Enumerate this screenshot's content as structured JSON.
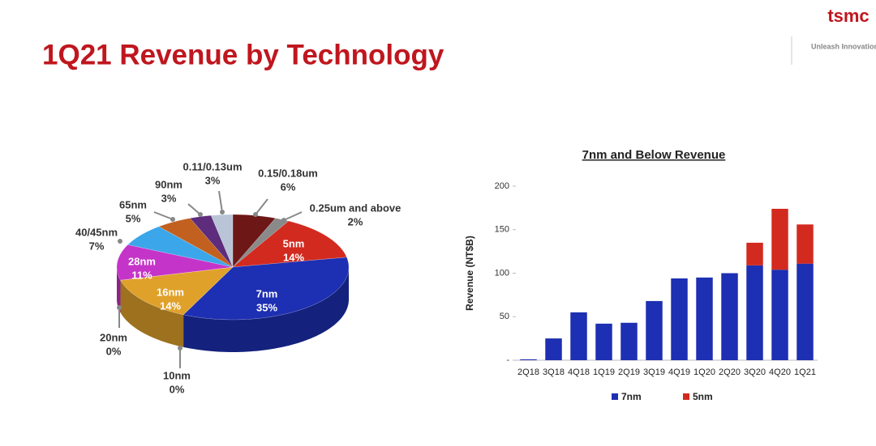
{
  "slide": {
    "title": "1Q21 Revenue by Technology",
    "logo": "tsmc",
    "tagline": "Unleash Innovation"
  },
  "chart_data": [
    {
      "type": "pie",
      "categories": [
        "0.15/0.18um",
        "0.25um and above",
        "5nm",
        "7nm",
        "10nm",
        "16nm",
        "20nm",
        "28nm",
        "40/45nm",
        "65nm",
        "90nm",
        "0.11/0.13um"
      ],
      "values": [
        6,
        2,
        14,
        35,
        0,
        14,
        0,
        11,
        7,
        5,
        3,
        3
      ],
      "value_labels": [
        "6%",
        "2%",
        "14%",
        "35%",
        "0%",
        "14%",
        "0%",
        "11%",
        "7%",
        "5%",
        "3%",
        "3%"
      ],
      "colors": [
        "#6e1717",
        "#8a8a8a",
        "#d22a1f",
        "#1d2fb2",
        "#555555",
        "#e0a12b",
        "#9a9a9a",
        "#c534c8",
        "#3ca6ea",
        "#c2611f",
        "#5d2c7c",
        "#b9c5d6"
      ]
    },
    {
      "type": "bar",
      "stacked": true,
      "title": "7nm and Below Revenue",
      "ylabel": "Revenue (NT$B)",
      "categories": [
        "2Q18",
        "3Q18",
        "4Q18",
        "1Q19",
        "2Q19",
        "3Q19",
        "4Q19",
        "1Q20",
        "2Q20",
        "3Q20",
        "4Q20",
        "1Q21"
      ],
      "series": [
        {
          "name": "7nm",
          "color": "#1d2fb2",
          "values": [
            1,
            25,
            55,
            42,
            43,
            68,
            94,
            95,
            100,
            109,
            104,
            111
          ]
        },
        {
          "name": "5nm",
          "color": "#d22a1f",
          "values": [
            0,
            0,
            0,
            0,
            0,
            0,
            0,
            0,
            0,
            26,
            70,
            45
          ]
        }
      ],
      "ylim": [
        0,
        200
      ],
      "yticks": [
        {
          "value": 0,
          "label": "-"
        },
        50,
        100,
        150,
        200
      ],
      "legend": "bottom"
    }
  ]
}
